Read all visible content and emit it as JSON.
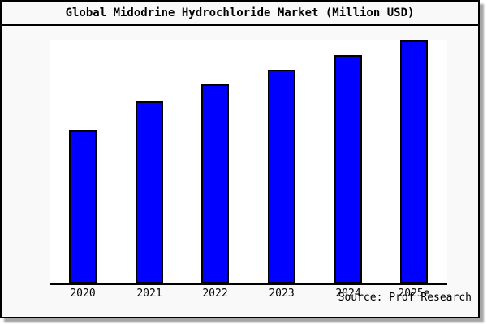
{
  "figure": {
    "title": "Global Midodrine Hydrochloride Market (Million USD)",
    "source_note": "Source: Prof Research",
    "colors": {
      "frame_background": "#f9f9f9",
      "plot_background": "#ffffff",
      "bar_fill": "#0000ff",
      "bar_border": "#000000",
      "axis": "#000000",
      "text": "#000000"
    }
  },
  "chart_data": {
    "type": "bar",
    "title": "Global Midodrine Hydrochloride Market (Million USD)",
    "categories": [
      "2020",
      "2021",
      "2022",
      "2023",
      "2024",
      "2025e"
    ],
    "values": [
      63,
      75,
      82,
      88,
      94,
      100
    ],
    "value_units": "relative bar height, % of tallest bar (no numeric y-axis scale shown)",
    "xlabel": "",
    "ylabel": "",
    "ylim": [
      0,
      100
    ],
    "y_ticks": [],
    "gridlines": false,
    "legend": "none",
    "bar_color": "#0000ff",
    "annotations": [
      "Source: Prof Research"
    ]
  }
}
